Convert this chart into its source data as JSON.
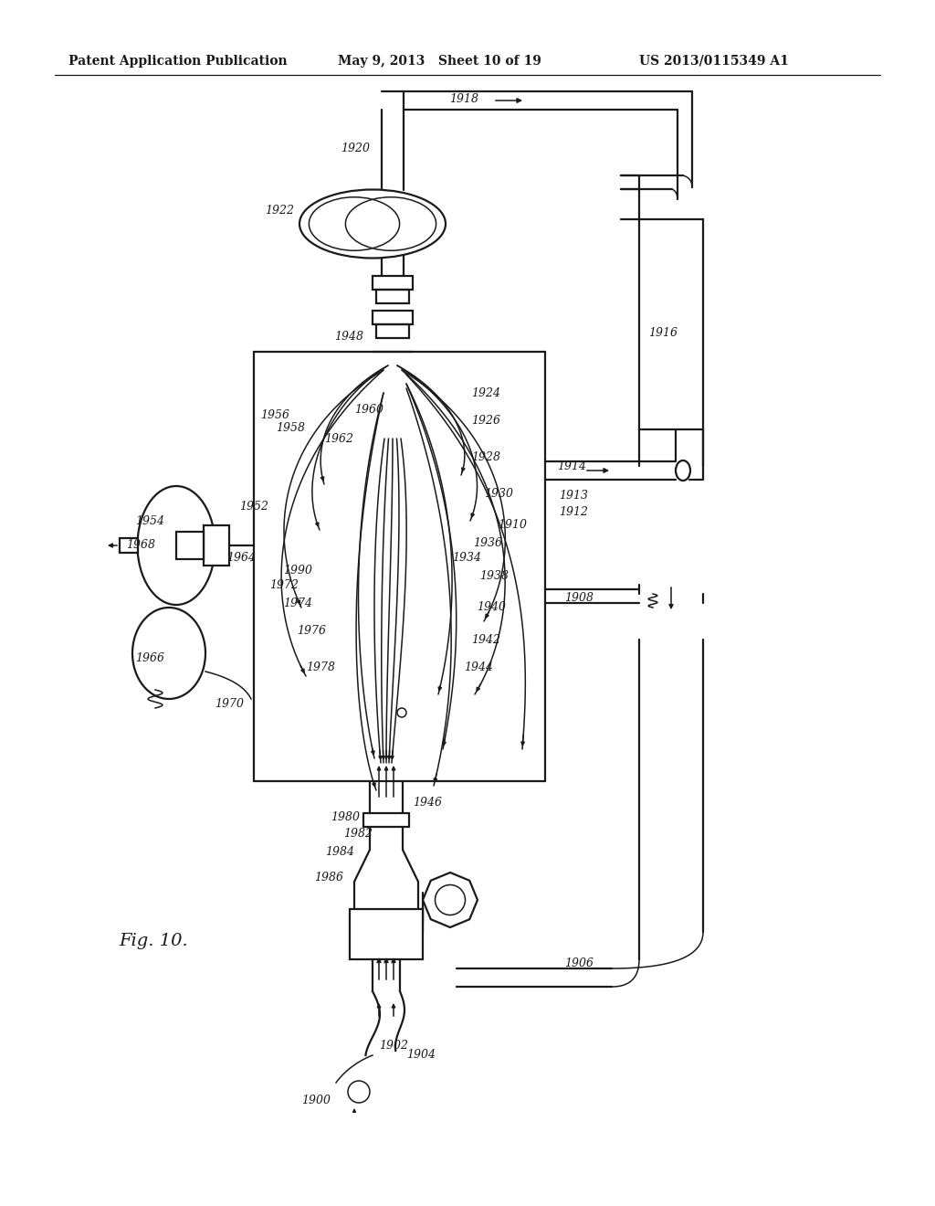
{
  "header_left": "Patent Application Publication",
  "header_mid": "May 9, 2013   Sheet 10 of 19",
  "header_right": "US 2013/0115349 A1",
  "fig_label": "Fig. 10.",
  "background": "#ffffff",
  "line_color": "#1a1a1a"
}
